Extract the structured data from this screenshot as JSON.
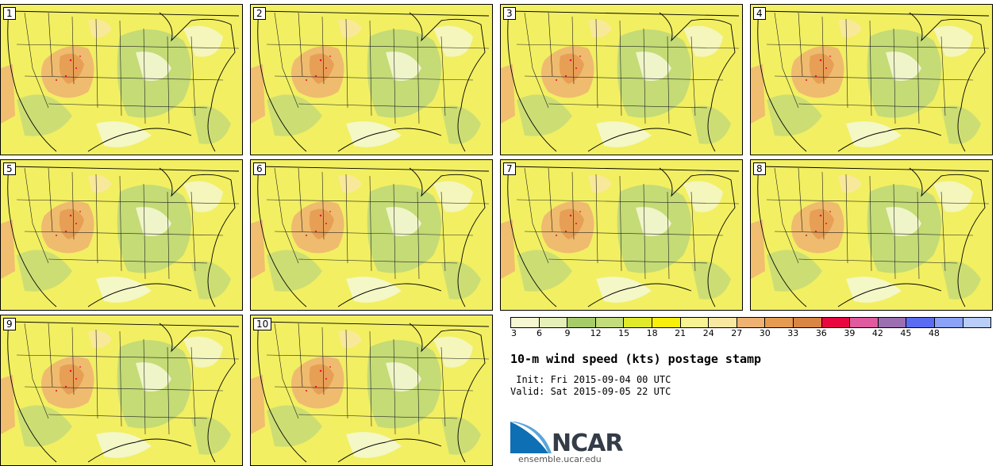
{
  "stamps": [
    "1",
    "2",
    "3",
    "4",
    "5",
    "6",
    "7",
    "8",
    "9",
    "10"
  ],
  "colorbar": {
    "ticks": [
      "3",
      "6",
      "9",
      "12",
      "15",
      "18",
      "21",
      "24",
      "27",
      "30",
      "33",
      "36",
      "39",
      "42",
      "45",
      "48"
    ],
    "colors": [
      "#f4f7d2",
      "#e5f0b8",
      "#a6cc68",
      "#c3dc7b",
      "#e1ea2a",
      "#f8ef0a",
      "#f7f293",
      "#f8e8a1",
      "#efb272",
      "#e59c52",
      "#d98544",
      "#e8083f",
      "#e05aa0",
      "#9b6fb0",
      "#5a6df2",
      "#8aa2f8",
      "#b8cdf8"
    ]
  },
  "title": "10-m wind speed (kts) postage stamp",
  "init": " Init: Fri 2015-09-04 00 UTC",
  "valid": "Valid: Sat 2015-09-05 22 UTC",
  "logo": {
    "text": "NCAR",
    "url": "ensemble.ucar.edu"
  }
}
